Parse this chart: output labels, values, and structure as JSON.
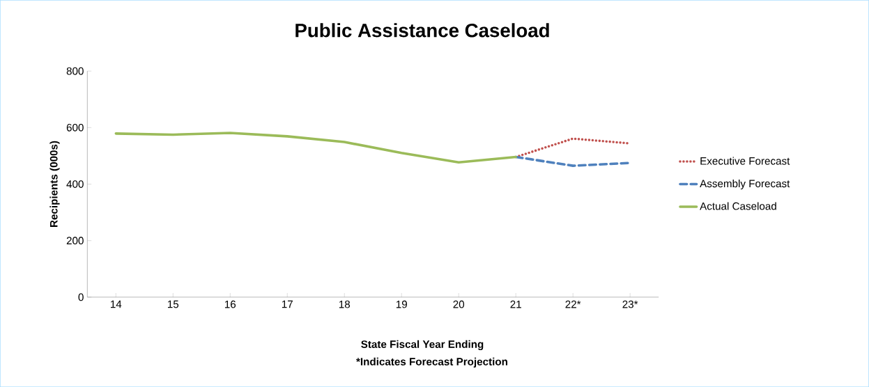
{
  "chart_data": {
    "type": "line",
    "title": "Public Assistance Caseload",
    "xlabel": "State Fiscal Year Ending",
    "ylabel": "Recipients (000s)",
    "annotations": [
      "*Indicates Forecast Projection"
    ],
    "categories": [
      "14",
      "15",
      "16",
      "17",
      "18",
      "19",
      "20",
      "21",
      "22*",
      "23*"
    ],
    "series": [
      {
        "name": "Executive Forecast",
        "color": "#c0504d",
        "line_style": "dotted",
        "values": [
          null,
          null,
          null,
          null,
          null,
          null,
          null,
          496,
          561,
          544
        ]
      },
      {
        "name": "Assembly Forecast",
        "color": "#4f81bd",
        "line_style": "dashed",
        "values": [
          null,
          null,
          null,
          null,
          null,
          null,
          null,
          496,
          465,
          475
        ]
      },
      {
        "name": "Actual Caseload",
        "color": "#9bbb59",
        "line_style": "solid",
        "values": [
          579,
          575,
          581,
          569,
          549,
          510,
          477,
          496,
          null,
          null
        ]
      }
    ],
    "ylim": [
      0,
      800
    ],
    "yticks": [
      0,
      200,
      400,
      600,
      800
    ],
    "grid": false,
    "legend": "right",
    "marker": "none"
  }
}
